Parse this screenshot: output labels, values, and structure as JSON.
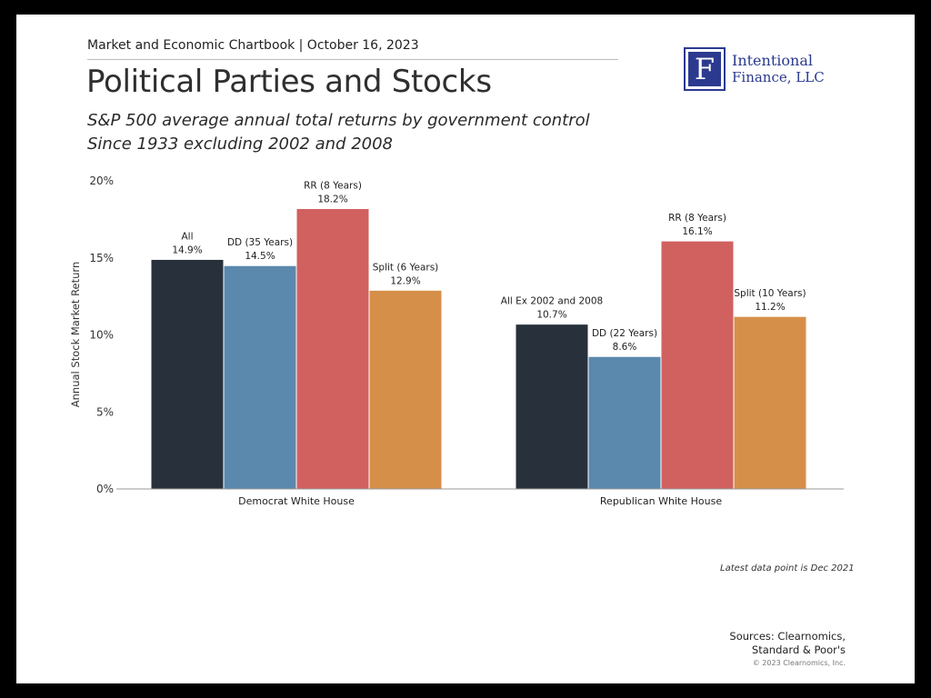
{
  "header": {
    "chartbook_line": "Market and Economic Chartbook | October 16, 2023",
    "title": "Political Parties and Stocks",
    "subtitle_line1": "S&P 500 average annual total returns by government control",
    "subtitle_line2": "Since 1933 excluding 2002 and 2008"
  },
  "logo": {
    "letter": "F",
    "name_line1": "Intentional",
    "name_line2": "Finance, LLC",
    "color": "#2b3a8f"
  },
  "chart_data": {
    "type": "bar",
    "ylabel": "Annual Stock Market Return",
    "ylim": [
      0,
      20
    ],
    "yticks": [
      "0%",
      "5%",
      "10%",
      "15%",
      "20%"
    ],
    "grid": false,
    "groups": [
      {
        "name": "Democrat White House",
        "bars": [
          {
            "label": "All",
            "value": 14.9,
            "value_label": "14.9%",
            "color": "#28313b"
          },
          {
            "label": "DD (35 Years)",
            "value": 14.5,
            "value_label": "14.5%",
            "color": "#5b88ad"
          },
          {
            "label": "RR (8 Years)",
            "value": 18.2,
            "value_label": "18.2%",
            "color": "#d0615f"
          },
          {
            "label": "Split (6 Years)",
            "value": 12.9,
            "value_label": "12.9%",
            "color": "#d68f49"
          }
        ]
      },
      {
        "name": "Republican White House",
        "bars": [
          {
            "label": "All Ex 2002 and 2008",
            "value": 10.7,
            "value_label": "10.7%",
            "color": "#28313b"
          },
          {
            "label": "DD (22 Years)",
            "value": 8.6,
            "value_label": "8.6%",
            "color": "#5b88ad"
          },
          {
            "label": "RR (8 Years)",
            "value": 16.1,
            "value_label": "16.1%",
            "color": "#d0615f"
          },
          {
            "label": "Split (10 Years)",
            "value": 11.2,
            "value_label": "11.2%",
            "color": "#d68f49"
          }
        ]
      }
    ]
  },
  "footer": {
    "note": "Latest data point is Dec 2021",
    "sources_line1": "Sources: Clearnomics,",
    "sources_line2": "Standard & Poor's",
    "copyright": "© 2023 Clearnomics, Inc."
  }
}
